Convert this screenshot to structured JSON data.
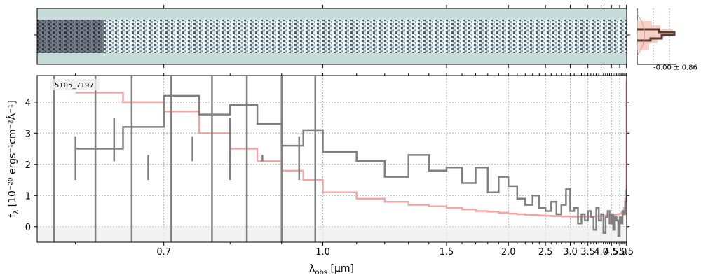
{
  "chart_data": {
    "type": "line",
    "object_label": "5105_7197",
    "xlabel_main": "λ",
    "xlabel_sub": "obs",
    "xlabel_unit": " [μm]",
    "ylabel_main": "f",
    "ylabel_sub": "λ",
    "ylabel_unit": " [10⁻²⁰ ergs⁻¹cm⁻²Å⁻¹]",
    "x_scale": "reciprocal",
    "xlim": [
      0.565,
      5.52
    ],
    "ylim": [
      -0.5,
      4.85
    ],
    "x_ticks": [
      0.7,
      1.0,
      1.5,
      2.0,
      2.5,
      3.0,
      3.5,
      4.0,
      4.5,
      5.0,
      5.5
    ],
    "x_tick_labels": [
      "0.7",
      "1.0",
      "1.5",
      "2.0",
      "2.5",
      "3.0",
      "3.5",
      "4.0",
      "4.5",
      "5.0",
      "5.5"
    ],
    "y_ticks": [
      0,
      1,
      2,
      3,
      4
    ],
    "y_tick_labels": [
      "0",
      "1",
      "2",
      "3",
      "4"
    ],
    "grid": true,
    "side_panel_label": "-0.00 ± 0.86",
    "series": [
      {
        "color": "#808080",
        "x": [
          0.6,
          0.65,
          0.7,
          0.75,
          0.8,
          0.85,
          0.9,
          0.95,
          1.0,
          1.1,
          1.2,
          1.3,
          1.4,
          1.5,
          1.6,
          1.7,
          1.8,
          1.9,
          2.0,
          2.1,
          2.2,
          2.3,
          2.4,
          2.5,
          2.6,
          2.7,
          2.8,
          2.9,
          3.0,
          3.1,
          3.2,
          3.3,
          3.4,
          3.5,
          3.6,
          3.7,
          3.8,
          3.9,
          4.0,
          4.1,
          4.2,
          4.3,
          4.4,
          4.5,
          4.6,
          4.7,
          4.8,
          4.9,
          5.0,
          5.1,
          5.2,
          5.3,
          5.4,
          5.5
        ],
        "y": [
          2.5,
          3.2,
          4.2,
          3.6,
          3.9,
          3.3,
          2.6,
          3.1,
          2.4,
          2.1,
          1.6,
          2.3,
          1.8,
          1.9,
          1.4,
          1.9,
          1.1,
          1.6,
          1.3,
          0.9,
          0.7,
          1.0,
          0.6,
          0.5,
          0.8,
          0.4,
          0.7,
          1.2,
          0.5,
          0.6,
          0.1,
          0.4,
          0.2,
          0.5,
          0.3,
          -0.1,
          0.6,
          0.2,
          0.4,
          -0.2,
          0.3,
          0.5,
          0.1,
          0.4,
          -0.1,
          0.3,
          0.2,
          -0.3,
          0.3,
          0.1,
          0.5,
          0.4,
          0.8,
          1.2
        ]
      },
      {
        "color": "#f4a6a6",
        "x": [
          0.6,
          0.65,
          0.7,
          0.75,
          0.8,
          0.85,
          0.9,
          0.95,
          1.0,
          1.1,
          1.2,
          1.3,
          1.4,
          1.5,
          1.6,
          1.7,
          1.8,
          1.9,
          2.0,
          2.1,
          2.2,
          2.3,
          2.4,
          2.5,
          2.6,
          2.7,
          2.8,
          2.9,
          3.0,
          3.1,
          3.2,
          3.3,
          3.4,
          3.5,
          3.6,
          3.7,
          3.8,
          3.9,
          4.0,
          4.1,
          4.2,
          4.3,
          4.4,
          4.5,
          4.6,
          4.7,
          4.8,
          4.9,
          5.0,
          5.1,
          5.2,
          5.3,
          5.4,
          5.5
        ],
        "y": [
          4.3,
          4.0,
          3.7,
          3.0,
          2.5,
          2.1,
          1.8,
          1.5,
          1.1,
          0.9,
          0.8,
          0.7,
          0.65,
          0.6,
          0.55,
          0.5,
          0.48,
          0.45,
          0.42,
          0.4,
          0.38,
          0.37,
          0.36,
          0.35,
          0.34,
          0.34,
          0.33,
          0.33,
          0.32,
          0.32,
          0.32,
          0.32,
          0.32,
          0.33,
          0.33,
          0.33,
          0.34,
          0.34,
          0.35,
          0.35,
          0.36,
          0.36,
          0.37,
          0.37,
          0.38,
          0.38,
          0.39,
          0.4,
          0.42,
          0.45,
          0.5,
          0.6,
          0.9,
          4.7
        ]
      }
    ]
  }
}
